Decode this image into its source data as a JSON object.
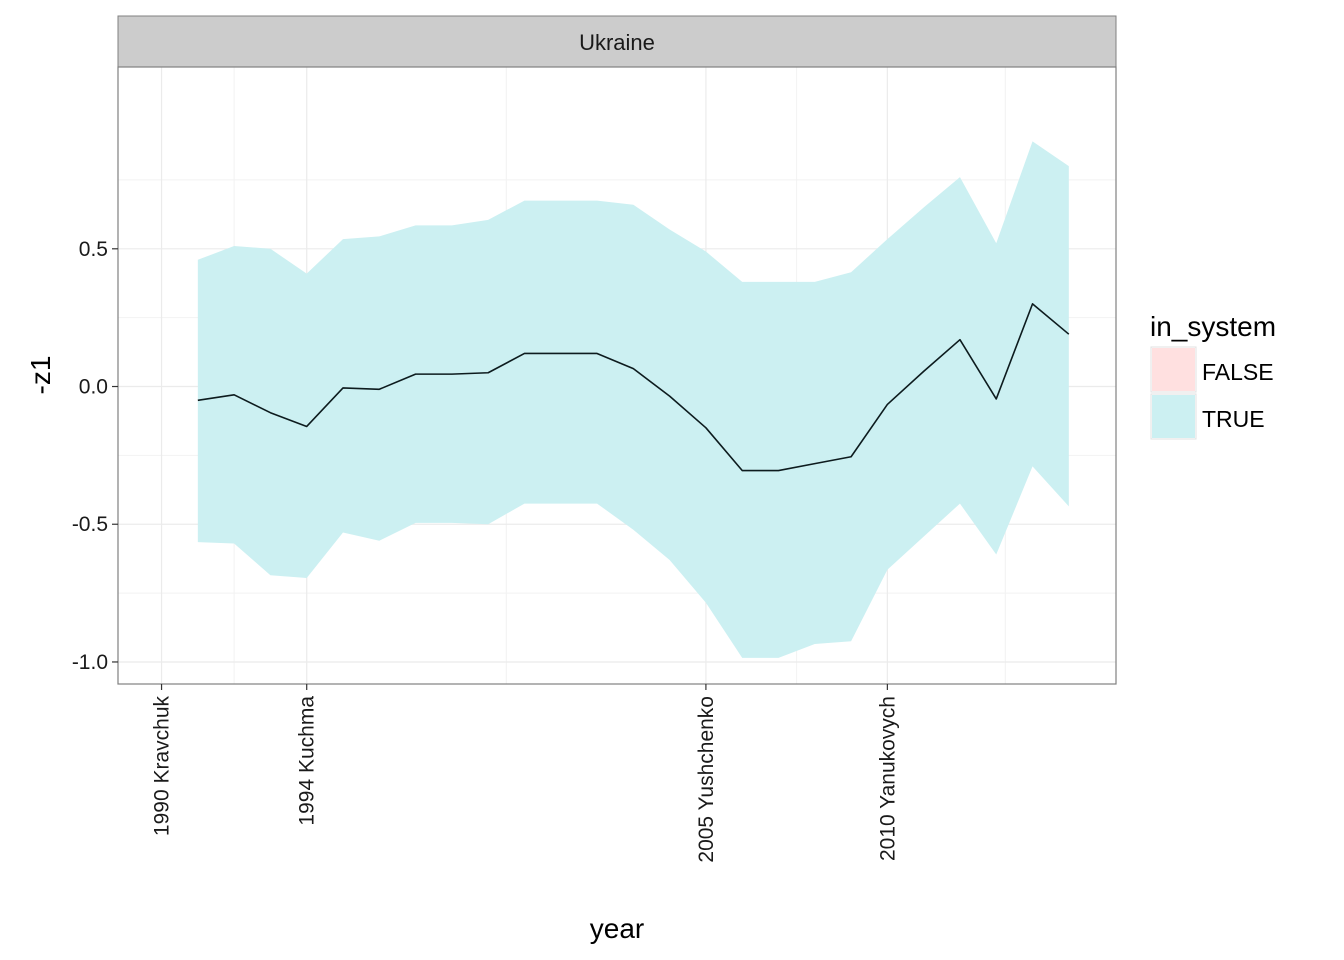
{
  "chart_data": {
    "type": "area",
    "facet_label": "Ukraine",
    "xlabel": "year",
    "ylabel": "-z1",
    "xlim": [
      1988.8,
      2016.3
    ],
    "ylim": [
      -1.08,
      1.16
    ],
    "yticks": [
      -1.0,
      -0.5,
      0.0,
      0.5
    ],
    "ytick_labels": [
      "-1.0",
      "-0.5",
      "0.0",
      "0.5"
    ],
    "xticks": [
      {
        "x": 1990,
        "label": "1990 Kravchuk"
      },
      {
        "x": 1994,
        "label": "1994 Kuchma"
      },
      {
        "x": 2005,
        "label": "2005 Yushchenko"
      },
      {
        "x": 2010,
        "label": "2010 Yanukovych"
      }
    ],
    "minor_x": [
      1992.0,
      1999.5,
      2007.5,
      2013.25
    ],
    "minor_y": [
      -0.75,
      -0.25,
      0.25,
      0.75
    ],
    "grid": true,
    "legend": {
      "title": "in_system",
      "position": "right",
      "entries": [
        {
          "label": "FALSE",
          "color": "#FFE0E0"
        },
        {
          "label": "TRUE",
          "color": "#CCF0F2"
        }
      ]
    },
    "series": [
      {
        "group": "TRUE",
        "color": "#CCF0F2",
        "line_color": "#0d1b1e",
        "x": [
          1991,
          1992,
          1993,
          1994,
          1995,
          1996,
          1997,
          1998,
          1999,
          2000,
          2001,
          2002,
          2003,
          2004,
          2005,
          2006,
          2007,
          2008,
          2009,
          2010,
          2011,
          2012,
          2013,
          2014,
          2015
        ],
        "y": [
          -0.05,
          -0.03,
          -0.095,
          -0.145,
          -0.005,
          -0.01,
          0.045,
          0.045,
          0.05,
          0.12,
          0.12,
          0.12,
          0.065,
          -0.035,
          -0.15,
          -0.305,
          -0.305,
          -0.28,
          -0.255,
          -0.065,
          0.055,
          0.17,
          -0.045,
          0.3,
          0.19
        ],
        "upper": [
          0.46,
          0.51,
          0.5,
          0.41,
          0.535,
          0.545,
          0.585,
          0.585,
          0.605,
          0.675,
          0.675,
          0.675,
          0.66,
          0.57,
          0.49,
          0.38,
          0.38,
          0.38,
          0.415,
          0.535,
          0.65,
          0.76,
          0.52,
          0.89,
          0.8
        ],
        "lower": [
          -0.565,
          -0.57,
          -0.685,
          -0.695,
          -0.53,
          -0.56,
          -0.495,
          -0.495,
          -0.5,
          -0.425,
          -0.425,
          -0.425,
          -0.52,
          -0.63,
          -0.785,
          -0.985,
          -0.985,
          -0.935,
          -0.925,
          -0.665,
          -0.545,
          -0.425,
          -0.61,
          -0.29,
          -0.435
        ]
      }
    ]
  }
}
